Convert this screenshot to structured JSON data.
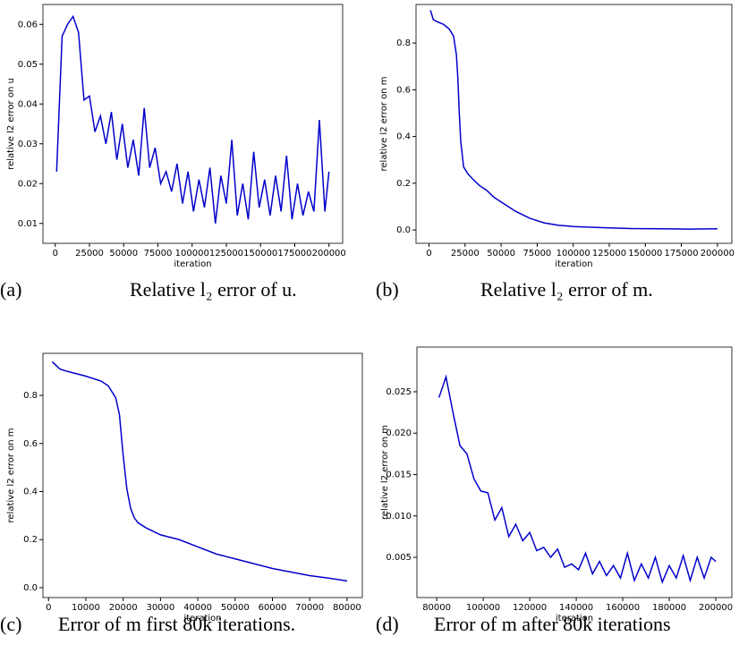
{
  "chart_data": [
    {
      "type": "line",
      "caption_label": "(a)",
      "caption": "Relative l₂ error of u.",
      "x_label": "iteration",
      "y_label": "relative l2 error on u",
      "xlim": [
        -9000,
        210000
      ],
      "xticks": [
        0,
        25000,
        50000,
        75000,
        100000,
        125000,
        150000,
        175000,
        200000
      ],
      "ylim": [
        0.005,
        0.065
      ],
      "yticks": [
        0.01,
        0.02,
        0.03,
        0.04,
        0.05,
        0.06
      ],
      "series": [
        {
          "color": "#0000cc",
          "x": [
            1000,
            5000,
            9000,
            13000,
            17000,
            21000,
            25000,
            29000,
            33000,
            37000,
            41000,
            45000,
            49000,
            53000,
            57000,
            61000,
            65000,
            69000,
            73000,
            77000,
            81000,
            85000,
            89000,
            93000,
            97000,
            101000,
            105000,
            109000,
            113000,
            117000,
            121000,
            125000,
            129000,
            133000,
            137000,
            141000,
            145000,
            149000,
            153000,
            157000,
            161000,
            165000,
            169000,
            173000,
            177000,
            181000,
            185000,
            189000,
            193000,
            197000,
            200000
          ],
          "values": [
            0.023,
            0.057,
            0.06,
            0.062,
            0.058,
            0.041,
            0.042,
            0.033,
            0.037,
            0.03,
            0.038,
            0.026,
            0.035,
            0.024,
            0.031,
            0.022,
            0.039,
            0.024,
            0.029,
            0.02,
            0.023,
            0.018,
            0.025,
            0.015,
            0.023,
            0.013,
            0.021,
            0.014,
            0.024,
            0.01,
            0.022,
            0.015,
            0.031,
            0.012,
            0.02,
            0.011,
            0.028,
            0.014,
            0.021,
            0.012,
            0.022,
            0.013,
            0.027,
            0.011,
            0.02,
            0.012,
            0.018,
            0.013,
            0.036,
            0.013,
            0.023
          ]
        }
      ]
    },
    {
      "type": "line",
      "caption_label": "(b)",
      "caption": "Relative l₂ error of m.",
      "x_label": "iteration",
      "y_label": "relative l2 error on m",
      "xlim": [
        -9000,
        210000
      ],
      "xticks": [
        0,
        25000,
        50000,
        75000,
        100000,
        125000,
        150000,
        175000,
        200000
      ],
      "ylim": [
        -0.057,
        0.965
      ],
      "yticks": [
        {
          "value": 0,
          "label": "0.0"
        },
        0.2,
        0.4,
        0.6,
        0.8
      ],
      "series": [
        {
          "color": "#0000cc",
          "x": [
            1000,
            3000,
            6000,
            10000,
            14000,
            17000,
            19000,
            20000,
            21000,
            22000,
            24000,
            27000,
            30000,
            35000,
            40000,
            45000,
            50000,
            55000,
            60000,
            70000,
            80000,
            90000,
            100000,
            120000,
            140000,
            160000,
            180000,
            200000
          ],
          "values": [
            0.94,
            0.9,
            0.89,
            0.88,
            0.86,
            0.83,
            0.75,
            0.65,
            0.5,
            0.38,
            0.27,
            0.24,
            0.22,
            0.19,
            0.17,
            0.14,
            0.12,
            0.1,
            0.08,
            0.05,
            0.03,
            0.02,
            0.015,
            0.01,
            0.006,
            0.005,
            0.004,
            0.005
          ]
        }
      ]
    },
    {
      "type": "line",
      "caption_label": "(c)",
      "caption": "Error of m first 80k iterations.",
      "x_label": "iteration",
      "y_label": "relative l2 error on m",
      "xlim": [
        -1500,
        84100
      ],
      "xticks": [
        0,
        10000,
        20000,
        30000,
        40000,
        50000,
        60000,
        70000,
        80000
      ],
      "ylim": [
        -0.041,
        0.975
      ],
      "yticks": [
        {
          "value": 0,
          "label": "0.0"
        },
        0.2,
        0.4,
        0.6,
        0.8
      ],
      "series": [
        {
          "color": "#0000cc",
          "x": [
            1000,
            3000,
            5000,
            10000,
            14000,
            16000,
            18000,
            19000,
            20000,
            21000,
            22000,
            23000,
            24000,
            26000,
            30000,
            35000,
            40000,
            45000,
            50000,
            55000,
            60000,
            65000,
            70000,
            75000,
            80000
          ],
          "values": [
            0.94,
            0.91,
            0.9,
            0.88,
            0.86,
            0.84,
            0.79,
            0.72,
            0.55,
            0.41,
            0.33,
            0.29,
            0.27,
            0.25,
            0.22,
            0.2,
            0.17,
            0.14,
            0.12,
            0.1,
            0.08,
            0.065,
            0.05,
            0.04,
            0.028
          ]
        }
      ]
    },
    {
      "type": "line",
      "caption_label": "(d)",
      "caption": "Error of m after 80k iterations",
      "x_label": "iteration",
      "y_label": "relative l2 error on m",
      "xlim": [
        71500,
        206900
      ],
      "xticks": [
        80000,
        100000,
        120000,
        140000,
        160000,
        180000,
        200000
      ],
      "ylim": [
        0.00014,
        0.0304
      ],
      "yticks": [
        0.005,
        {
          "value": 0.01,
          "label": "0.010"
        },
        0.015,
        {
          "value": 0.02,
          "label": "0.020"
        },
        0.025
      ],
      "series": [
        {
          "color": "#0000cc",
          "x": [
            81000,
            84000,
            87000,
            90000,
            93000,
            96000,
            99000,
            102000,
            105000,
            108000,
            111000,
            114000,
            117000,
            120000,
            123000,
            126000,
            129000,
            132000,
            135000,
            138000,
            141000,
            144000,
            147000,
            150000,
            153000,
            156000,
            159000,
            162000,
            165000,
            168000,
            171000,
            174000,
            177000,
            180000,
            183000,
            186000,
            189000,
            192000,
            195000,
            198000,
            200000
          ],
          "values": [
            0.0243,
            0.0268,
            0.0225,
            0.0185,
            0.0175,
            0.0145,
            0.013,
            0.0128,
            0.0095,
            0.011,
            0.0075,
            0.009,
            0.007,
            0.008,
            0.0058,
            0.0062,
            0.005,
            0.006,
            0.0038,
            0.0042,
            0.0035,
            0.0055,
            0.003,
            0.0045,
            0.0028,
            0.004,
            0.0025,
            0.0055,
            0.0022,
            0.0042,
            0.0025,
            0.005,
            0.002,
            0.004,
            0.0025,
            0.0052,
            0.0022,
            0.005,
            0.0025,
            0.005,
            0.0045
          ]
        }
      ]
    }
  ]
}
